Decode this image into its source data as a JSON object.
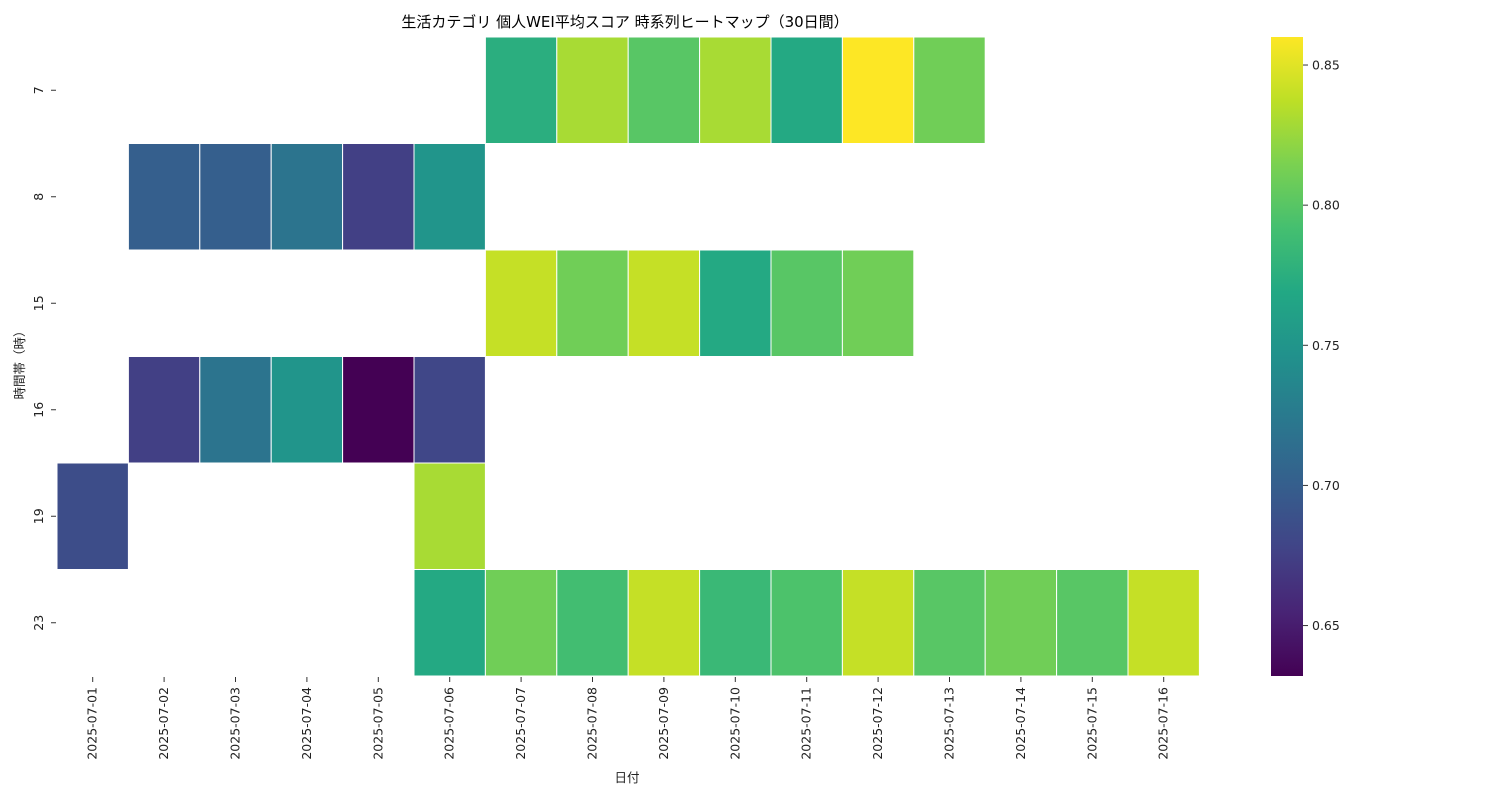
{
  "chart_data": {
    "type": "heatmap",
    "title": "生活カテゴリ 個人WEI平均スコア 時系列ヒートマップ（30日間）",
    "xlabel": "日付",
    "ylabel": "時間帯（時）",
    "x": [
      "2025-07-01",
      "2025-07-02",
      "2025-07-03",
      "2025-07-04",
      "2025-07-05",
      "2025-07-06",
      "2025-07-07",
      "2025-07-08",
      "2025-07-09",
      "2025-07-10",
      "2025-07-11",
      "2025-07-12",
      "2025-07-13",
      "2025-07-14",
      "2025-07-15",
      "2025-07-16"
    ],
    "y": [
      "7",
      "8",
      "15",
      "16",
      "19",
      "23"
    ],
    "values": [
      [
        null,
        null,
        null,
        null,
        null,
        null,
        0.775,
        0.83,
        0.8,
        0.83,
        0.77,
        0.86,
        0.81,
        null,
        null,
        null
      ],
      [
        null,
        0.7,
        0.7,
        0.72,
        0.675,
        0.75,
        null,
        null,
        null,
        null,
        null,
        null,
        null,
        null,
        null,
        null
      ],
      [
        null,
        null,
        null,
        null,
        null,
        null,
        0.84,
        0.81,
        0.84,
        0.77,
        0.8,
        0.81,
        null,
        null,
        null,
        null
      ],
      [
        null,
        0.675,
        0.72,
        0.75,
        0.632,
        0.68,
        null,
        null,
        null,
        null,
        null,
        null,
        null,
        null,
        null,
        null
      ],
      [
        0.685,
        null,
        null,
        null,
        null,
        0.83,
        null,
        null,
        null,
        null,
        null,
        null,
        null,
        null,
        null,
        null
      ],
      [
        null,
        null,
        null,
        null,
        null,
        0.77,
        0.81,
        0.79,
        0.84,
        0.785,
        0.795,
        0.84,
        0.8,
        0.81,
        0.8,
        0.84
      ]
    ],
    "colorscale": "viridis",
    "vmin": 0.632,
    "vmax": 0.86,
    "colorbar_ticks": [
      "0.65",
      "0.70",
      "0.75",
      "0.80",
      "0.85"
    ],
    "colorbar_tick_values": [
      0.65,
      0.7,
      0.75,
      0.8,
      0.85
    ],
    "grid": false
  }
}
